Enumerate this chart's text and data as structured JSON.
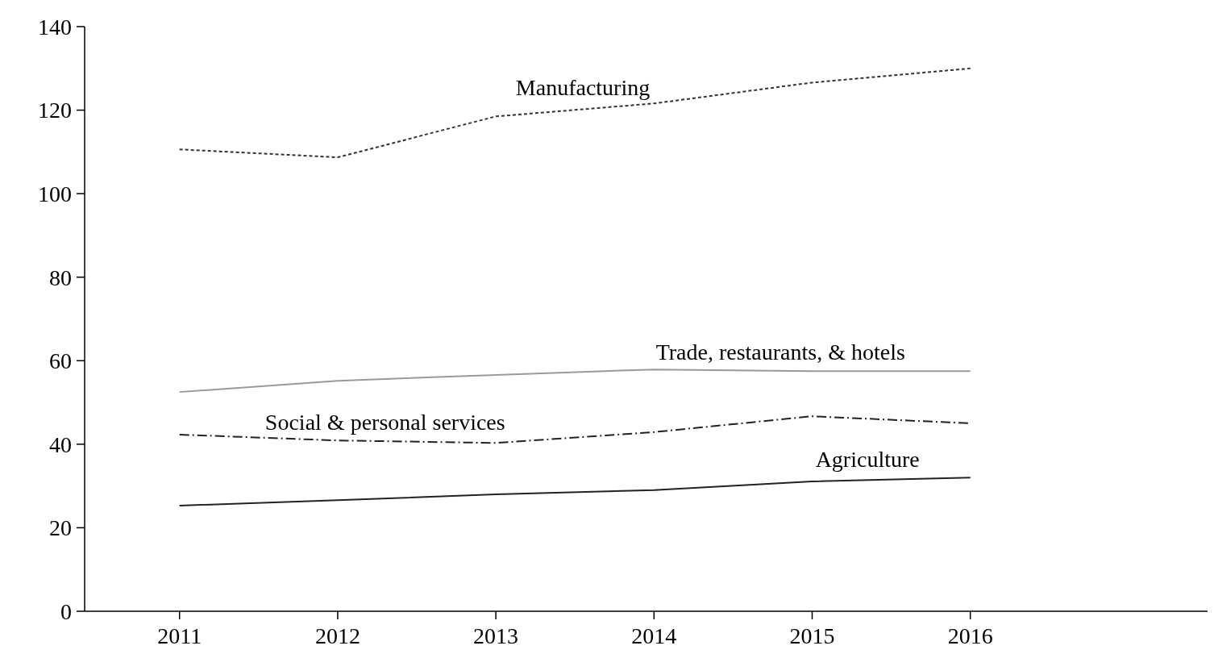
{
  "chart_data": {
    "type": "line",
    "x": [
      2011,
      2012,
      2013,
      2014,
      2015,
      2016
    ],
    "xlim": [
      2010.4,
      2017.5
    ],
    "xticks": [
      2011,
      2012,
      2013,
      2014,
      2015,
      2016
    ],
    "ylim": [
      0,
      140
    ],
    "yticks": [
      0,
      20,
      40,
      60,
      80,
      100,
      120,
      140
    ],
    "grid": false,
    "series": [
      {
        "name": "Manufacturing",
        "color": "#333333",
        "line_style": "dotted",
        "values": [
          110.6,
          108.7,
          118.5,
          121.6,
          126.6,
          130
        ]
      },
      {
        "name": "Trade, restaurants, & hotels",
        "color": "#9a9a9a",
        "line_style": "solid",
        "values": [
          52.5,
          55.2,
          56.6,
          57.9,
          57.5,
          57.5
        ]
      },
      {
        "name": "Social & personal services",
        "color": "#222222",
        "line_style": "dashed",
        "values": [
          42.3,
          40.9,
          40.3,
          42.9,
          46.7,
          45
        ]
      },
      {
        "name": "Agriculture",
        "color": "#222222",
        "line_style": "solid",
        "values": [
          25.3,
          26.6,
          28,
          29,
          31.1,
          32
        ]
      }
    ]
  }
}
